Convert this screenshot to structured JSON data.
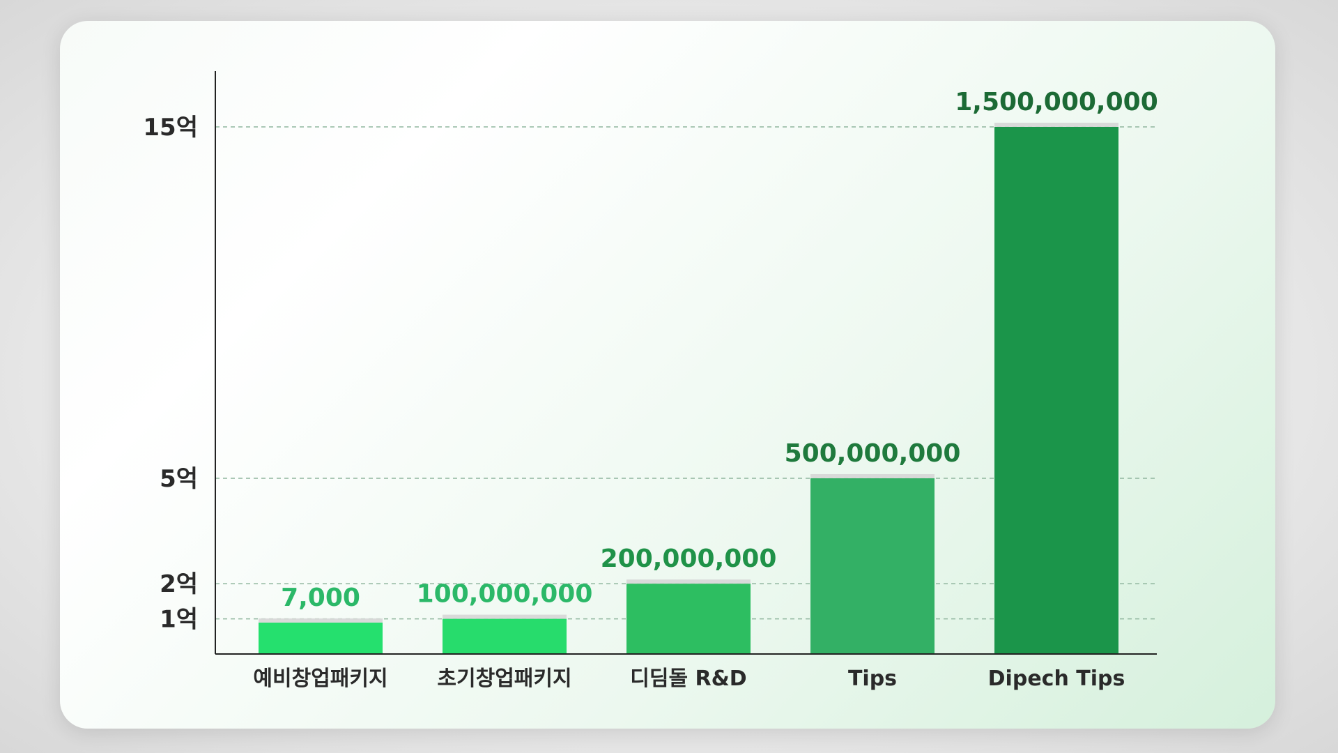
{
  "chart_data": {
    "type": "bar",
    "categories": [
      "예비창업패키지",
      "초기창업패키지",
      "디딤돌 R&D",
      "Tips",
      "Dipech Tips"
    ],
    "values": [
      7000,
      100000000,
      200000000,
      500000000,
      1500000000
    ],
    "value_labels": [
      "7,000",
      "100,000,000",
      "200,000,000",
      "500,000,000",
      "1,500,000,000"
    ],
    "yticks": [
      {
        "value": 100000000,
        "label": "1억"
      },
      {
        "value": 200000000,
        "label": "2억"
      },
      {
        "value": 500000000,
        "label": "5억"
      },
      {
        "value": 1500000000,
        "label": "15억"
      }
    ],
    "ylim": [
      0,
      1500000000
    ],
    "grid": true,
    "colors": {
      "bars": [
        "#25e06e",
        "#27dc6c",
        "#2dbe61",
        "#33b065",
        "#1b954a"
      ],
      "labels": [
        "#2bb868",
        "#2bb868",
        "#1f9248",
        "#1f7a3d",
        "#1c6a35"
      ],
      "grid": "#8fb59d",
      "axis": "#222222"
    }
  }
}
